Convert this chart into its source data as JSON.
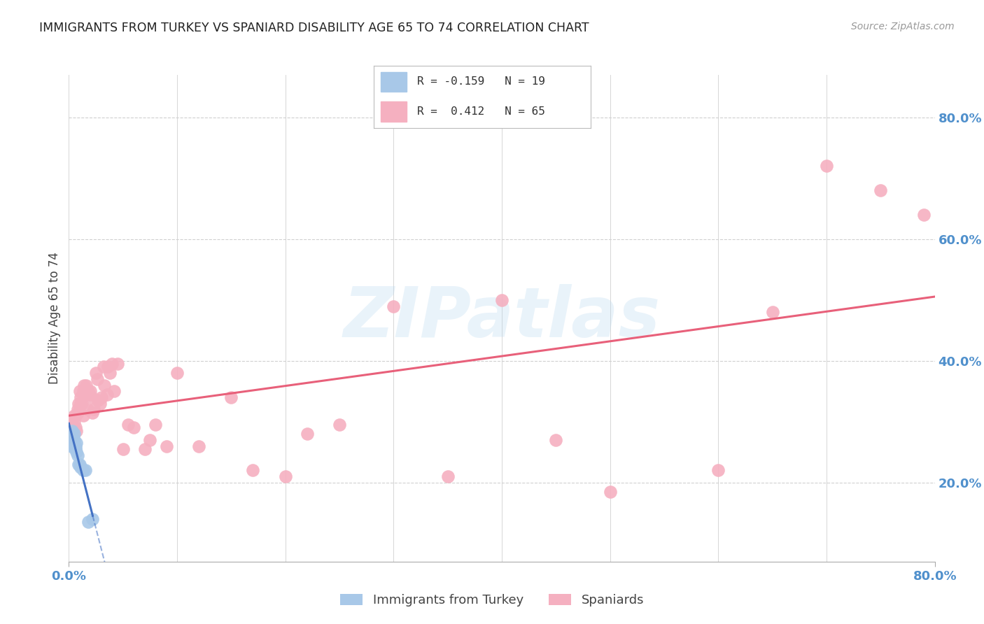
{
  "title": "IMMIGRANTS FROM TURKEY VS SPANIARD DISABILITY AGE 65 TO 74 CORRELATION CHART",
  "source": "Source: ZipAtlas.com",
  "ylabel": "Disability Age 65 to 74",
  "watermark": "ZIPatlas",
  "legend_turkey": "Immigrants from Turkey",
  "legend_spaniards": "Spaniards",
  "turkey_R": -0.159,
  "turkey_N": 19,
  "spaniard_R": 0.412,
  "spaniard_N": 65,
  "xlim": [
    0.0,
    0.8
  ],
  "ylim": [
    0.07,
    0.87
  ],
  "yticks": [
    0.2,
    0.4,
    0.6,
    0.8
  ],
  "xticks_labels": [
    "0.0%",
    "80.0%"
  ],
  "xticks_pos": [
    0.0,
    0.8
  ],
  "turkey_x": [
    0.001,
    0.002,
    0.003,
    0.003,
    0.004,
    0.005,
    0.005,
    0.006,
    0.006,
    0.007,
    0.007,
    0.008,
    0.009,
    0.01,
    0.011,
    0.013,
    0.015,
    0.018,
    0.022
  ],
  "turkey_y": [
    0.265,
    0.26,
    0.275,
    0.285,
    0.265,
    0.27,
    0.28,
    0.26,
    0.255,
    0.265,
    0.25,
    0.245,
    0.23,
    0.23,
    0.225,
    0.22,
    0.22,
    0.135,
    0.14
  ],
  "spaniard_x": [
    0.001,
    0.002,
    0.003,
    0.004,
    0.005,
    0.005,
    0.006,
    0.006,
    0.007,
    0.008,
    0.008,
    0.009,
    0.01,
    0.011,
    0.011,
    0.012,
    0.013,
    0.013,
    0.014,
    0.015,
    0.016,
    0.017,
    0.018,
    0.019,
    0.02,
    0.021,
    0.022,
    0.023,
    0.025,
    0.026,
    0.027,
    0.029,
    0.03,
    0.032,
    0.033,
    0.035,
    0.036,
    0.038,
    0.04,
    0.042,
    0.045,
    0.05,
    0.055,
    0.06,
    0.07,
    0.075,
    0.08,
    0.09,
    0.1,
    0.12,
    0.15,
    0.17,
    0.2,
    0.22,
    0.25,
    0.3,
    0.35,
    0.4,
    0.45,
    0.5,
    0.6,
    0.65,
    0.7,
    0.75,
    0.79
  ],
  "spaniard_y": [
    0.275,
    0.295,
    0.295,
    0.28,
    0.3,
    0.31,
    0.29,
    0.31,
    0.285,
    0.32,
    0.315,
    0.33,
    0.35,
    0.34,
    0.33,
    0.33,
    0.31,
    0.35,
    0.36,
    0.35,
    0.36,
    0.32,
    0.35,
    0.345,
    0.35,
    0.34,
    0.315,
    0.32,
    0.38,
    0.37,
    0.335,
    0.33,
    0.34,
    0.39,
    0.36,
    0.345,
    0.39,
    0.38,
    0.395,
    0.35,
    0.395,
    0.255,
    0.295,
    0.29,
    0.255,
    0.27,
    0.295,
    0.26,
    0.38,
    0.26,
    0.34,
    0.22,
    0.21,
    0.28,
    0.295,
    0.49,
    0.21,
    0.5,
    0.27,
    0.185,
    0.22,
    0.48,
    0.72,
    0.68,
    0.64
  ],
  "turkey_color": "#a8c8e8",
  "spaniard_color": "#f5b0c0",
  "turkey_line_color": "#4472c4",
  "spaniard_line_color": "#e8607a",
  "bg_color": "#ffffff",
  "grid_color": "#d0d0d0",
  "title_color": "#222222",
  "axis_label_color": "#444444",
  "tick_color": "#5090cc",
  "source_color": "#999999"
}
